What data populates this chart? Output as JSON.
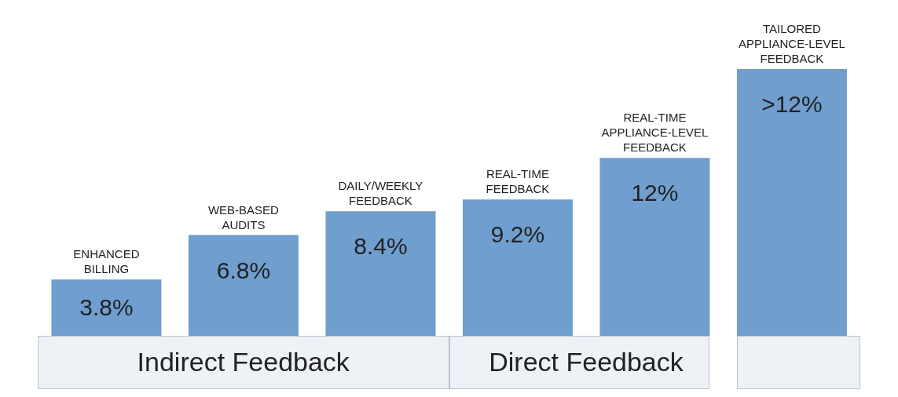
{
  "chart_data": {
    "type": "bar",
    "categories": [
      "ENHANCED BILLING",
      "WEB-BASED AUDITS",
      "DAILY/WEEKLY FEEDBACK",
      "REAL-TIME FEEDBACK",
      "REAL-TIME APPLIANCE-LEVEL FEEDBACK",
      "TAILORED APPLIANCE-LEVEL FEEDBACK"
    ],
    "values": [
      3.8,
      6.8,
      8.4,
      9.2,
      12,
      18
    ],
    "value_labels": [
      "3.8%",
      "6.8%",
      "8.4%",
      "9.2%",
      "12%",
      ">12%"
    ],
    "color": "#6f9ecf",
    "annotations": [
      "Indirect Feedback",
      "Direct Feedback"
    ]
  }
}
